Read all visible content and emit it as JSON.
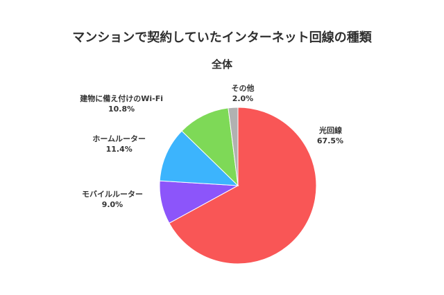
{
  "chart_data": {
    "type": "pie",
    "title": "マンションで契約していたインターネット回線の種類",
    "subtitle": "全体",
    "slices": [
      {
        "label": "光回線",
        "value": 67.5,
        "value_label": "67.5%",
        "color": "#f95656"
      },
      {
        "label": "モバイルルーター",
        "value": 9.0,
        "value_label": "9.0%",
        "color": "#8c55fa"
      },
      {
        "label": "ホームルーター",
        "value": 11.4,
        "value_label": "11.4%",
        "color": "#3cb4fd"
      },
      {
        "label": "建物に備え付けのWi-Fi",
        "value": 10.8,
        "value_label": "10.8%",
        "color": "#7ed957"
      },
      {
        "label": "その他",
        "value": 2.0,
        "value_label": "2.0%",
        "color": "#b1b1b1"
      }
    ]
  }
}
